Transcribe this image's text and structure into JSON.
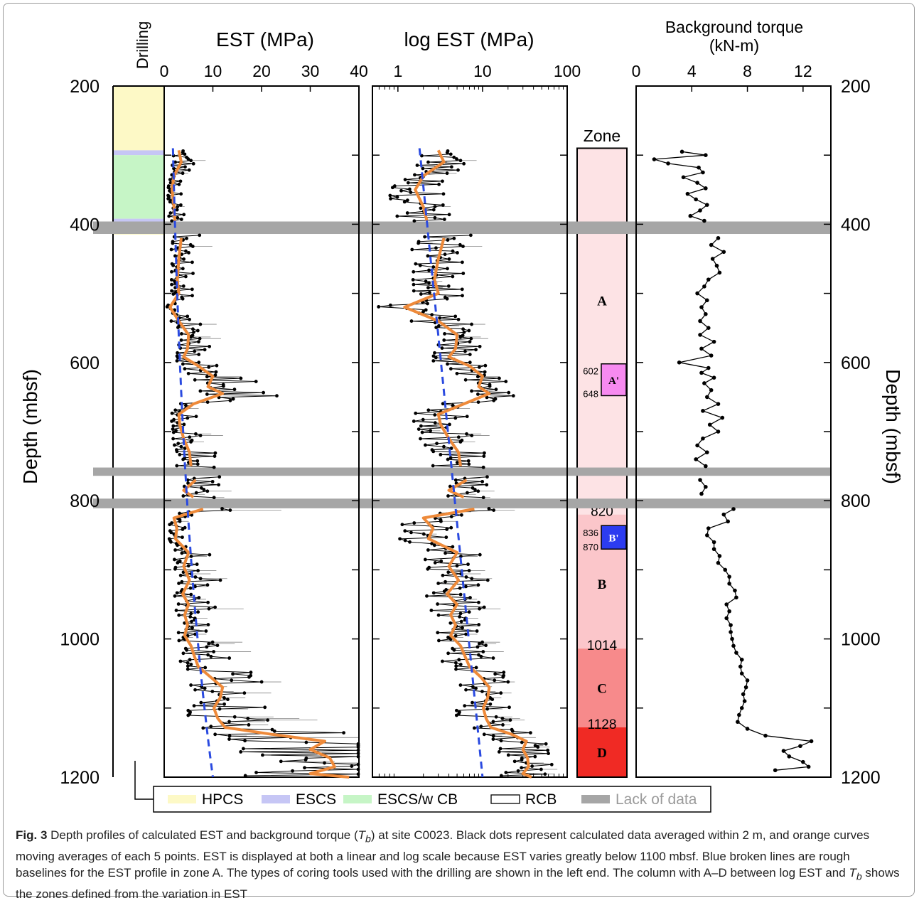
{
  "panels": {
    "drilling": {
      "title": "Drilling"
    },
    "est_linear": {
      "title": "EST (MPa)",
      "ticks": [
        "0",
        "10",
        "20",
        "30",
        "40"
      ],
      "xlim": [
        0,
        40
      ]
    },
    "est_log": {
      "title": "log EST (MPa)",
      "ticks": [
        "1",
        "10",
        "100"
      ],
      "xlim": [
        0.5,
        100
      ],
      "scale": "log"
    },
    "zone": {
      "title": "Zone"
    },
    "torque": {
      "title_line1": "Background torque",
      "title_line2": "(kN-m)",
      "ticks": [
        "0",
        "4",
        "8",
        "12"
      ],
      "xlim": [
        0,
        14
      ]
    }
  },
  "depth_axis": {
    "label": "Depth (mbsf)",
    "ticks": [
      "200",
      "400",
      "600",
      "800",
      "1000",
      "1200"
    ],
    "ylim": [
      200,
      1200
    ],
    "direction": "downward"
  },
  "chart_data": {
    "type": "line",
    "title": "",
    "ylabel": "Depth (mbsf)",
    "ylim": [
      200,
      1200
    ],
    "drilling_intervals": [
      {
        "tool": "HPCS",
        "from": 200,
        "to": 293
      },
      {
        "tool": "ESCS",
        "from": 293,
        "to": 300
      },
      {
        "tool": "ESCS/w CB",
        "from": 300,
        "to": 392
      },
      {
        "tool": "ESCS",
        "from": 392,
        "to": 396
      },
      {
        "tool": "HPCS",
        "from": 396,
        "to": 415
      },
      {
        "tool": "RCB",
        "from": 415,
        "to": 1200
      }
    ],
    "lack_of_data": [
      {
        "from": 396,
        "to": 414
      },
      {
        "from": 752,
        "to": 764
      },
      {
        "from": 797,
        "to": 811
      }
    ],
    "zones": [
      {
        "label": "A",
        "from": 290,
        "to": 820,
        "color": "#fde3e5"
      },
      {
        "label": "B",
        "from": 820,
        "to": 1014,
        "color": "#fbc6ca"
      },
      {
        "label": "C",
        "from": 1014,
        "to": 1128,
        "color": "#f78a8b"
      },
      {
        "label": "D",
        "from": 1128,
        "to": 1200,
        "color": "#f02a24"
      }
    ],
    "subzones": [
      {
        "label": "A'",
        "from": 602,
        "to": 648,
        "color": "#f78af0"
      },
      {
        "label": "B'",
        "from": 836,
        "to": 870,
        "color": "#2c3cf0"
      }
    ],
    "zone_boundary_labels": [
      "820",
      "1014",
      "1128"
    ],
    "subzone_labels": [
      "602",
      "648",
      "836",
      "870"
    ],
    "est_moving_average": {
      "name": "moving average (5 points)",
      "depth": [
        293,
        310,
        330,
        350,
        375,
        395,
        420,
        450,
        480,
        500,
        520,
        540,
        560,
        580,
        592,
        605,
        620,
        635,
        645,
        660,
        675,
        690,
        710,
        730,
        750,
        770,
        785,
        795,
        812,
        825,
        840,
        855,
        875,
        895,
        915,
        935,
        950,
        965,
        980,
        995,
        1010,
        1025,
        1040,
        1055,
        1070,
        1085,
        1100,
        1115,
        1128,
        1138,
        1148,
        1160,
        1172,
        1185,
        1195,
        1200
      ],
      "est": [
        3,
        3.5,
        2,
        1.6,
        2,
        2.2,
        3.5,
        3,
        2.7,
        3,
        1.2,
        3,
        5,
        4.8,
        4,
        7,
        10,
        9,
        12,
        6,
        3,
        3.2,
        4,
        5.2,
        5.5,
        6.5,
        4,
        6,
        8,
        2,
        2.6,
        2.3,
        5,
        4,
        5.2,
        3.8,
        5,
        4.2,
        4.8,
        4.2,
        5.5,
        6.2,
        7,
        9.5,
        12,
        11.5,
        10.2,
        11,
        12.5,
        22,
        33,
        30,
        34,
        35,
        30,
        38
      ]
    },
    "est_baseline": {
      "name": "rough baseline (zone A)",
      "depth": [
        290,
        1200
      ],
      "est": [
        1.8,
        10
      ]
    },
    "torque_profile": {
      "name": "background torque T_b",
      "depth": [
        295,
        300,
        306,
        312,
        318,
        325,
        332,
        340,
        348,
        356,
        364,
        372,
        380,
        388,
        395,
        420,
        430,
        440,
        450,
        460,
        470,
        480,
        490,
        500,
        510,
        520,
        530,
        540,
        550,
        560,
        570,
        580,
        590,
        600,
        608,
        615,
        622,
        630,
        640,
        650,
        660,
        670,
        680,
        690,
        700,
        710,
        720,
        730,
        740,
        750,
        770,
        780,
        790,
        812,
        820,
        830,
        840,
        850,
        860,
        870,
        880,
        890,
        900,
        910,
        920,
        930,
        940,
        950,
        960,
        970,
        980,
        990,
        1000,
        1010,
        1020,
        1030,
        1040,
        1050,
        1060,
        1070,
        1080,
        1090,
        1100,
        1110,
        1120,
        1130,
        1140,
        1148,
        1155,
        1162,
        1170,
        1178,
        1185,
        1190
      ],
      "torque": [
        3.3,
        5.0,
        1.3,
        2.3,
        4.5,
        4.8,
        3.4,
        4.4,
        5.0,
        3.7,
        4.3,
        5.1,
        4.6,
        3.9,
        4.9,
        5.9,
        5.4,
        6.3,
        5.5,
        5.8,
        6.0,
        5.2,
        4.9,
        4.4,
        5.1,
        4.7,
        5.0,
        4.6,
        5.2,
        4.6,
        5.6,
        4.7,
        5.4,
        3.1,
        5.2,
        4.7,
        5.6,
        4.9,
        5.4,
        5.1,
        5.9,
        4.8,
        6.2,
        5.3,
        5.9,
        4.8,
        4.4,
        5.1,
        4.3,
        5.0,
        4.6,
        5.0,
        4.7,
        7.0,
        6.3,
        6.6,
        5.2,
        5.1,
        5.6,
        5.6,
        6.0,
        5.9,
        6.4,
        6.7,
        6.7,
        7.1,
        7.2,
        6.5,
        6.7,
        6.5,
        6.8,
        6.8,
        6.9,
        7.0,
        7.2,
        7.6,
        7.5,
        7.6,
        8.0,
        7.9,
        7.7,
        7.8,
        7.6,
        7.4,
        7.3,
        8.0,
        9.3,
        12.6,
        11.8,
        10.6,
        11.0,
        12.0,
        12.4,
        10.0
      ]
    }
  },
  "legend": {
    "items": [
      {
        "label": "HPCS",
        "color": "#fdf9c6"
      },
      {
        "label": "ESCS",
        "color": "#c6c6f5"
      },
      {
        "label": "ESCS/w CB",
        "color": "#c6f5c6"
      },
      {
        "label": "RCB",
        "color": "#ffffff"
      },
      {
        "label": "Lack of data",
        "color": "#a6a6a6"
      }
    ]
  },
  "colors": {
    "moving_average": "#ee8a3a",
    "baseline": "#2a4ae0",
    "data_points": "#000000",
    "lack_of_data": "#a6a6a6"
  },
  "caption": {
    "fig_label": "Fig. 3",
    "part1": " Depth profiles of calculated EST and background torque (",
    "tb_t": "T",
    "tb_sub": "b",
    "part2": ") at site C0023. Black dots represent calculated data averaged within 2 m, and orange curves moving averages of each 5 points. EST is displayed at both a linear and log scale because EST varies greatly below 1100 mbsf. Blue broken lines are rough baselines for the EST profile in zone A. The types of coring tools used with the drilling are shown in the left end. The column with A–D between log EST and ",
    "tb2_t": "T",
    "tb2_sub": "b",
    "part3": " shows the zones defined from the variation in EST"
  }
}
